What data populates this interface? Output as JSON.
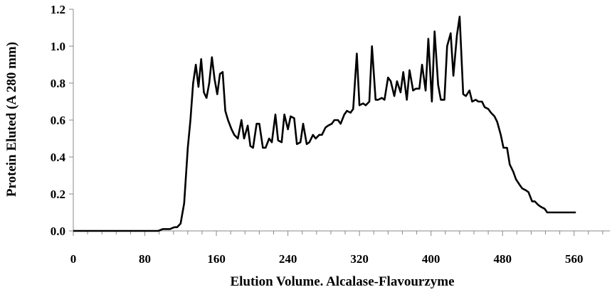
{
  "chart_data": {
    "type": "line",
    "title": "",
    "xlabel": "Elution Volume. Alcalase-Flavourzyme",
    "ylabel": "Protein Eluted (A 280 mm)",
    "xlim": [
      0,
      600
    ],
    "ylim": [
      0,
      1.2
    ],
    "xticks": [
      0,
      80,
      160,
      240,
      320,
      400,
      480,
      560
    ],
    "xtick_labels": [
      "0",
      "80",
      "160",
      "240",
      "320",
      "400",
      "480",
      "560"
    ],
    "yticks": [
      0,
      0.2,
      0.4,
      0.6,
      0.8,
      1.0,
      1.2
    ],
    "ytick_labels": [
      "0.0",
      "0.2",
      "0.4",
      "0.6",
      "0.8",
      "1.0",
      "1.2"
    ],
    "grid": false,
    "legend": "none",
    "line_color": "#000000",
    "series": [
      {
        "x": [
          0,
          95,
          100,
          108,
          113,
          116,
          120,
          124,
          128,
          131,
          134,
          137,
          140,
          143,
          146,
          149,
          152,
          155,
          158,
          161,
          164,
          167,
          170,
          173,
          177,
          180,
          184,
          188,
          191,
          195,
          198,
          201,
          205,
          208,
          212,
          215,
          219,
          222,
          226,
          229,
          233,
          236,
          240,
          243,
          247,
          250,
          254,
          257,
          261,
          264,
          268,
          271,
          275,
          278,
          282,
          285,
          289,
          292,
          296,
          299,
          303,
          306,
          310,
          313,
          317,
          320,
          324,
          327,
          331,
          334,
          338,
          341,
          345,
          348,
          352,
          355,
          359,
          362,
          366,
          369,
          373,
          376,
          380,
          383,
          387,
          390,
          394,
          397,
          401,
          404,
          408,
          411,
          415,
          418,
          422,
          425,
          429,
          432,
          436,
          439,
          443,
          446,
          450,
          453,
          457,
          460,
          464,
          467,
          471,
          474,
          478,
          481,
          485,
          488,
          492,
          495,
          499,
          502,
          506,
          509,
          513,
          516,
          520,
          523,
          527,
          530,
          534,
          537,
          541,
          544,
          548,
          551,
          555,
          558,
          562
        ],
        "y": [
          0.0,
          0.0,
          0.01,
          0.01,
          0.02,
          0.02,
          0.04,
          0.15,
          0.45,
          0.6,
          0.8,
          0.9,
          0.78,
          0.93,
          0.75,
          0.72,
          0.8,
          0.94,
          0.82,
          0.74,
          0.85,
          0.86,
          0.65,
          0.6,
          0.55,
          0.52,
          0.5,
          0.6,
          0.5,
          0.57,
          0.46,
          0.45,
          0.58,
          0.58,
          0.45,
          0.45,
          0.5,
          0.48,
          0.63,
          0.49,
          0.48,
          0.63,
          0.55,
          0.62,
          0.61,
          0.47,
          0.48,
          0.58,
          0.47,
          0.48,
          0.52,
          0.5,
          0.52,
          0.52,
          0.56,
          0.57,
          0.58,
          0.6,
          0.6,
          0.58,
          0.63,
          0.65,
          0.64,
          0.66,
          0.96,
          0.68,
          0.69,
          0.68,
          0.7,
          1.0,
          0.71,
          0.71,
          0.72,
          0.71,
          0.83,
          0.81,
          0.73,
          0.81,
          0.75,
          0.86,
          0.71,
          0.87,
          0.76,
          0.77,
          0.77,
          0.9,
          0.76,
          1.04,
          0.7,
          1.08,
          0.79,
          0.71,
          0.71,
          1.0,
          1.07,
          0.84,
          1.06,
          1.16,
          0.74,
          0.73,
          0.76,
          0.7,
          0.71,
          0.7,
          0.7,
          0.67,
          0.66,
          0.64,
          0.62,
          0.59,
          0.52,
          0.45,
          0.45,
          0.36,
          0.32,
          0.28,
          0.25,
          0.23,
          0.22,
          0.21,
          0.16,
          0.16,
          0.14,
          0.13,
          0.12,
          0.1,
          0.1,
          0.1,
          0.1,
          0.1,
          0.1,
          0.1,
          0.1,
          0.1,
          0.1
        ]
      }
    ]
  }
}
